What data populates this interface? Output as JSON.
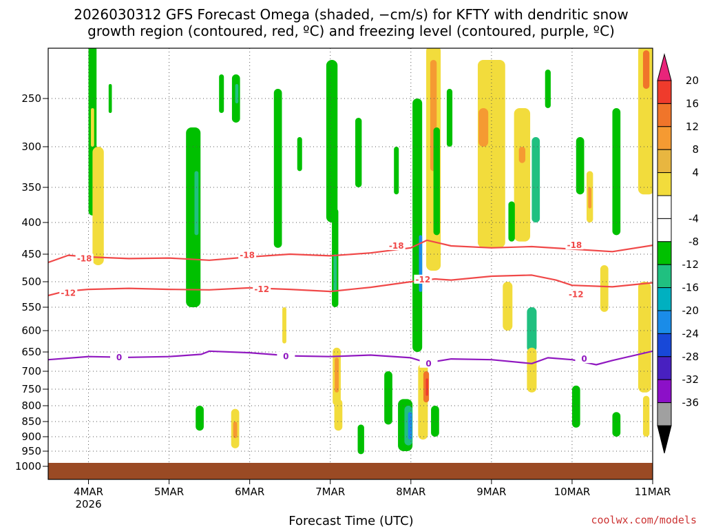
{
  "chart_data": {
    "type": "heatmap",
    "title": "2026030312 GFS Forecast Omega (shaded, −cm/s) for KFTY with dendritic snow",
    "title_line2": "growth region (contoured, red, ºC) and freezing level (contoured, purple, ºC)",
    "xlabel": "Forecast Time (UTC)",
    "credit": "coolwx.com/models",
    "x_range_days": [
      -0.5,
      7.0
    ],
    "x_ticks": [
      {
        "day": 0,
        "label": "4MAR",
        "sublabel": "2026"
      },
      {
        "day": 1,
        "label": "5MAR"
      },
      {
        "day": 2,
        "label": "6MAR"
      },
      {
        "day": 3,
        "label": "7MAR"
      },
      {
        "day": 4,
        "label": "8MAR"
      },
      {
        "day": 5,
        "label": "9MAR"
      },
      {
        "day": 6,
        "label": "10MAR"
      },
      {
        "day": 7,
        "label": "11MAR"
      }
    ],
    "y_ticks": [
      {
        "p": 250,
        "label": "250"
      },
      {
        "p": 300,
        "label": "300"
      },
      {
        "p": 350,
        "label": "350"
      },
      {
        "p": 400,
        "label": "400"
      },
      {
        "p": 450,
        "label": "450"
      },
      {
        "p": 500,
        "label": "500"
      },
      {
        "p": 550,
        "label": "550"
      },
      {
        "p": 600,
        "label": "600"
      },
      {
        "p": 650,
        "label": "650"
      },
      {
        "p": 700,
        "label": "700"
      },
      {
        "p": 750,
        "label": "750"
      },
      {
        "p": 800,
        "label": "800"
      },
      {
        "p": 850,
        "label": "850"
      },
      {
        "p": 900,
        "label": "900"
      },
      {
        "p": 950,
        "label": "950"
      },
      {
        "p": 1000,
        "label": "1000"
      }
    ],
    "colorbar": {
      "labels": [
        "20",
        "16",
        "12",
        "8",
        "4",
        "-4",
        "-8",
        "-12",
        "-16",
        "-20",
        "-24",
        "-28",
        "-32",
        "-36"
      ],
      "top_arrow_color": "#e8247a",
      "bottom_arrow_color": "#000000",
      "colors": [
        "#ff4060",
        "#ef3b2c",
        "#f0752a",
        "#f59a32",
        "#e8b640",
        "#f2dc3c",
        "#ffffff",
        "#ffffff",
        "#00c000",
        "#20c080",
        "#00b0c0",
        "#1a8ce8",
        "#1848d8",
        "#4820c0",
        "#8c10c8",
        "#a0a0a0"
      ]
    },
    "contours": [
      {
        "name": "dgz-minus-18",
        "level": "-18",
        "color": "#f04848",
        "points": [
          [
            -0.5,
            465
          ],
          [
            -0.25,
            452
          ],
          [
            0,
            455
          ],
          [
            0.5,
            458
          ],
          [
            1,
            457
          ],
          [
            1.5,
            461
          ],
          [
            2,
            455
          ],
          [
            2.5,
            450
          ],
          [
            3,
            453
          ],
          [
            3.5,
            448
          ],
          [
            4,
            440
          ],
          [
            4.2,
            428
          ],
          [
            4.5,
            437
          ],
          [
            5,
            440
          ],
          [
            5.5,
            438
          ],
          [
            6,
            442
          ],
          [
            6.5,
            446
          ],
          [
            7,
            436
          ]
        ],
        "labels": [
          {
            "day": -0.05,
            "p": 458
          },
          {
            "day": 1.97,
            "p": 452
          },
          {
            "day": 3.82,
            "p": 437
          },
          {
            "day": 6.03,
            "p": 436
          }
        ]
      },
      {
        "name": "dgz-minus-12",
        "level": "-12",
        "color": "#f04848",
        "points": [
          [
            -0.5,
            527
          ],
          [
            -0.3,
            519
          ],
          [
            0,
            515
          ],
          [
            0.5,
            513
          ],
          [
            1,
            515
          ],
          [
            1.5,
            516
          ],
          [
            2,
            512
          ],
          [
            2.5,
            515
          ],
          [
            3,
            519
          ],
          [
            3.5,
            511
          ],
          [
            4,
            500
          ],
          [
            4.3,
            495
          ],
          [
            4.5,
            497
          ],
          [
            5,
            490
          ],
          [
            5.5,
            488
          ],
          [
            5.8,
            497
          ],
          [
            6,
            507
          ],
          [
            6.5,
            510
          ],
          [
            7,
            502
          ]
        ],
        "labels": [
          {
            "day": -0.25,
            "p": 522
          },
          {
            "day": 2.15,
            "p": 515
          },
          {
            "day": 4.15,
            "p": 496
          },
          {
            "day": 6.05,
            "p": 525
          }
        ]
      },
      {
        "name": "freezing-level",
        "level": "0",
        "color": "#9018c0",
        "points": [
          [
            -0.5,
            670
          ],
          [
            0,
            662
          ],
          [
            0.5,
            664
          ],
          [
            1,
            662
          ],
          [
            1.4,
            656
          ],
          [
            1.5,
            648
          ],
          [
            2,
            652
          ],
          [
            2.5,
            660
          ],
          [
            3,
            662
          ],
          [
            3.5,
            658
          ],
          [
            4,
            665
          ],
          [
            4.2,
            678
          ],
          [
            4.5,
            668
          ],
          [
            5,
            670
          ],
          [
            5.5,
            680
          ],
          [
            5.7,
            665
          ],
          [
            6,
            670
          ],
          [
            6.3,
            683
          ],
          [
            6.5,
            672
          ],
          [
            7,
            648
          ]
        ],
        "labels": [
          {
            "day": 0.38,
            "p": 664
          },
          {
            "day": 2.45,
            "p": 662
          },
          {
            "day": 4.22,
            "p": 680
          },
          {
            "day": 6.15,
            "p": 668
          }
        ]
      }
    ],
    "omega_regions": [
      {
        "day": 0.05,
        "p1": 195,
        "p2": 390,
        "hw": 0.05,
        "c": "#00c000"
      },
      {
        "day": 0.27,
        "p1": 235,
        "p2": 265,
        "hw": 0.02,
        "c": "#00c000"
      },
      {
        "day": 0.05,
        "p1": 260,
        "p2": 300,
        "hw": 0.02,
        "c": "#f2dc3c"
      },
      {
        "day": 0.12,
        "p1": 300,
        "p2": 470,
        "hw": 0.07,
        "c": "#f2dc3c"
      },
      {
        "day": 1.3,
        "p1": 280,
        "p2": 550,
        "hw": 0.09,
        "c": "#00c000"
      },
      {
        "day": 1.34,
        "p1": 330,
        "p2": 420,
        "hw": 0.025,
        "c": "#20c080"
      },
      {
        "day": 1.38,
        "p1": 800,
        "p2": 880,
        "hw": 0.05,
        "c": "#00c000"
      },
      {
        "day": 1.65,
        "p1": 225,
        "p2": 265,
        "hw": 0.03,
        "c": "#00c000"
      },
      {
        "day": 1.83,
        "p1": 225,
        "p2": 275,
        "hw": 0.05,
        "c": "#00c000"
      },
      {
        "day": 1.84,
        "p1": 235,
        "p2": 255,
        "hw": 0.02,
        "c": "#20c080"
      },
      {
        "day": 1.82,
        "p1": 810,
        "p2": 940,
        "hw": 0.05,
        "c": "#f2dc3c"
      },
      {
        "day": 1.82,
        "p1": 850,
        "p2": 905,
        "hw": 0.025,
        "c": "#f59a32"
      },
      {
        "day": 2.35,
        "p1": 240,
        "p2": 440,
        "hw": 0.05,
        "c": "#00c000"
      },
      {
        "day": 2.43,
        "p1": 550,
        "p2": 630,
        "hw": 0.025,
        "c": "#f2dc3c"
      },
      {
        "day": 2.62,
        "p1": 290,
        "p2": 330,
        "hw": 0.03,
        "c": "#00c000"
      },
      {
        "day": 3.02,
        "p1": 210,
        "p2": 400,
        "hw": 0.07,
        "c": "#00c000"
      },
      {
        "day": 3.06,
        "p1": 380,
        "p2": 550,
        "hw": 0.04,
        "c": "#00c000"
      },
      {
        "day": 3.06,
        "p1": 450,
        "p2": 520,
        "hw": 0.02,
        "c": "#20c080"
      },
      {
        "day": 3.08,
        "p1": 640,
        "p2": 800,
        "hw": 0.05,
        "c": "#f2dc3c"
      },
      {
        "day": 3.08,
        "p1": 665,
        "p2": 760,
        "hw": 0.025,
        "c": "#f59a32"
      },
      {
        "day": 3.1,
        "p1": 780,
        "p2": 880,
        "hw": 0.05,
        "c": "#f2dc3c"
      },
      {
        "day": 3.35,
        "p1": 270,
        "p2": 350,
        "hw": 0.04,
        "c": "#00c000"
      },
      {
        "day": 3.38,
        "p1": 860,
        "p2": 960,
        "hw": 0.04,
        "c": "#00c000"
      },
      {
        "day": 3.72,
        "p1": 700,
        "p2": 860,
        "hw": 0.05,
        "c": "#00c000"
      },
      {
        "day": 3.82,
        "p1": 300,
        "p2": 360,
        "hw": 0.03,
        "c": "#00c000"
      },
      {
        "day": 3.93,
        "p1": 780,
        "p2": 950,
        "hw": 0.09,
        "c": "#00c000"
      },
      {
        "day": 3.97,
        "p1": 800,
        "p2": 930,
        "hw": 0.05,
        "c": "#20c080"
      },
      {
        "day": 3.99,
        "p1": 820,
        "p2": 910,
        "hw": 0.025,
        "c": "#1a8ce8"
      },
      {
        "day": 4.08,
        "p1": 250,
        "p2": 650,
        "hw": 0.06,
        "c": "#00c000"
      },
      {
        "day": 4.12,
        "p1": 420,
        "p2": 520,
        "hw": 0.02,
        "c": "#1a8ce8"
      },
      {
        "day": 4.15,
        "p1": 680,
        "p2": 910,
        "hw": 0.06,
        "c": "#f2dc3c"
      },
      {
        "day": 4.19,
        "p1": 700,
        "p2": 790,
        "hw": 0.035,
        "c": "#f0752a"
      },
      {
        "day": 4.2,
        "p1": 720,
        "p2": 770,
        "hw": 0.015,
        "c": "#ef3b2c"
      },
      {
        "day": 4.28,
        "p1": 195,
        "p2": 480,
        "hw": 0.09,
        "c": "#f2dc3c"
      },
      {
        "day": 4.28,
        "p1": 210,
        "p2": 330,
        "hw": 0.04,
        "c": "#f59a32"
      },
      {
        "day": 4.32,
        "p1": 280,
        "p2": 420,
        "hw": 0.04,
        "c": "#00c000"
      },
      {
        "day": 4.3,
        "p1": 800,
        "p2": 900,
        "hw": 0.05,
        "c": "#00c000"
      },
      {
        "day": 4.48,
        "p1": 240,
        "p2": 300,
        "hw": 0.035,
        "c": "#00c000"
      },
      {
        "day": 5.0,
        "p1": 210,
        "p2": 440,
        "hw": 0.17,
        "c": "#f2dc3c"
      },
      {
        "day": 4.9,
        "p1": 260,
        "p2": 300,
        "hw": 0.06,
        "c": "#f59a32"
      },
      {
        "day": 5.38,
        "p1": 260,
        "p2": 430,
        "hw": 0.1,
        "c": "#f2dc3c"
      },
      {
        "day": 5.38,
        "p1": 300,
        "p2": 320,
        "hw": 0.04,
        "c": "#f59a32"
      },
      {
        "day": 5.55,
        "p1": 290,
        "p2": 400,
        "hw": 0.05,
        "c": "#20c080"
      },
      {
        "day": 5.7,
        "p1": 220,
        "p2": 260,
        "hw": 0.035,
        "c": "#00c000"
      },
      {
        "day": 5.5,
        "p1": 550,
        "p2": 650,
        "hw": 0.06,
        "c": "#20c080"
      },
      {
        "day": 5.5,
        "p1": 640,
        "p2": 760,
        "hw": 0.06,
        "c": "#f2dc3c"
      },
      {
        "day": 5.2,
        "p1": 500,
        "p2": 600,
        "hw": 0.06,
        "c": "#f2dc3c"
      },
      {
        "day": 5.25,
        "p1": 370,
        "p2": 430,
        "hw": 0.04,
        "c": "#00c000"
      },
      {
        "day": 6.1,
        "p1": 290,
        "p2": 360,
        "hw": 0.05,
        "c": "#00c000"
      },
      {
        "day": 6.05,
        "p1": 740,
        "p2": 870,
        "hw": 0.05,
        "c": "#00c000"
      },
      {
        "day": 6.22,
        "p1": 330,
        "p2": 400,
        "hw": 0.04,
        "c": "#f2dc3c"
      },
      {
        "day": 6.22,
        "p1": 350,
        "p2": 380,
        "hw": 0.02,
        "c": "#f59a32"
      },
      {
        "day": 6.55,
        "p1": 260,
        "p2": 420,
        "hw": 0.05,
        "c": "#00c000"
      },
      {
        "day": 6.4,
        "p1": 470,
        "p2": 560,
        "hw": 0.05,
        "c": "#f2dc3c"
      },
      {
        "day": 6.55,
        "p1": 820,
        "p2": 900,
        "hw": 0.05,
        "c": "#00c000"
      },
      {
        "day": 6.9,
        "p1": 500,
        "p2": 760,
        "hw": 0.08,
        "c": "#f2dc3c"
      },
      {
        "day": 6.92,
        "p1": 195,
        "p2": 360,
        "hw": 0.1,
        "c": "#f2dc3c"
      },
      {
        "day": 6.92,
        "p1": 200,
        "p2": 240,
        "hw": 0.04,
        "c": "#f0752a"
      },
      {
        "day": 6.92,
        "p1": 770,
        "p2": 900,
        "hw": 0.04,
        "c": "#f2dc3c"
      }
    ]
  }
}
